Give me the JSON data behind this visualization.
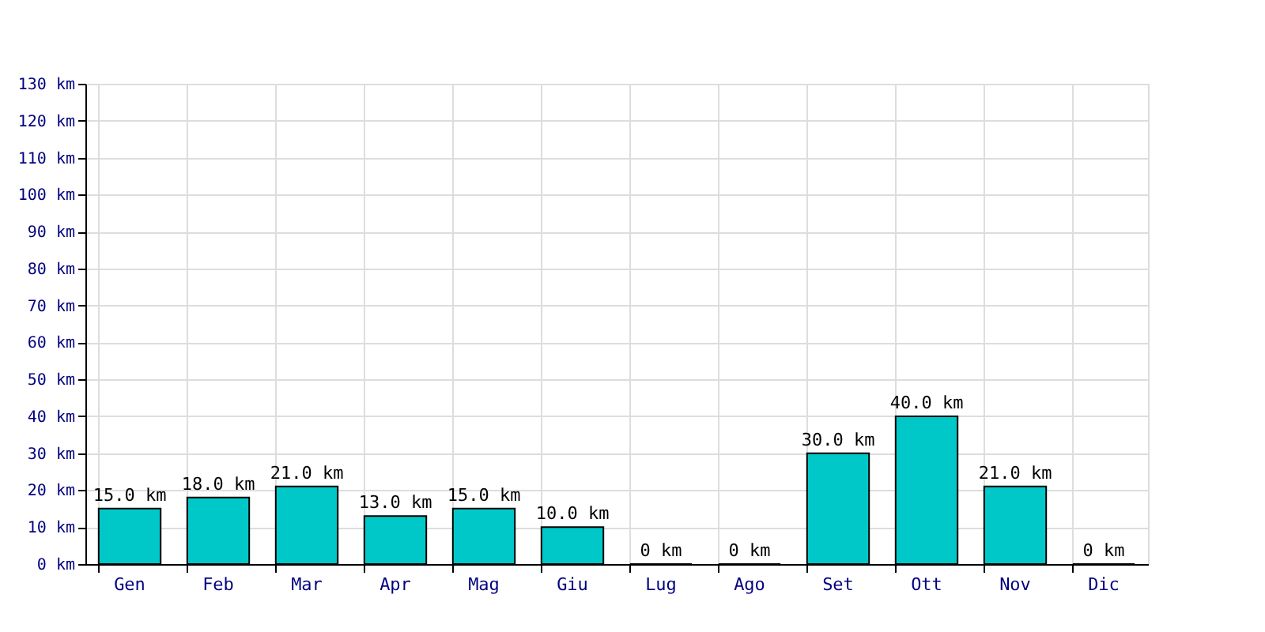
{
  "chart_data": {
    "type": "bar",
    "categories": [
      "Gen",
      "Feb",
      "Mar",
      "Apr",
      "Mag",
      "Giu",
      "Lug",
      "Ago",
      "Set",
      "Ott",
      "Nov",
      "Dic"
    ],
    "values": [
      15,
      18,
      21,
      13,
      15,
      10,
      0,
      0,
      30,
      40,
      21,
      0
    ],
    "value_labels": [
      "15.0 km",
      "18.0 km",
      "21.0 km",
      "13.0 km",
      "15.0 km",
      "10.0 km",
      "0 km",
      "0 km",
      "30.0 km",
      "40.0 km",
      "21.0 km",
      "0 km"
    ],
    "color": "#00c8c8",
    "ylim": [
      0,
      130
    ],
    "yticks": [
      {
        "value": 0,
        "label": "0 km"
      },
      {
        "value": 10,
        "label": "10 km"
      },
      {
        "value": 20,
        "label": "20 km"
      },
      {
        "value": 30,
        "label": "30 km"
      },
      {
        "value": 40,
        "label": "40 km"
      },
      {
        "value": 50,
        "label": "50 km"
      },
      {
        "value": 60,
        "label": "60 km"
      },
      {
        "value": 70,
        "label": "70 km"
      },
      {
        "value": 80,
        "label": "80 km"
      },
      {
        "value": 90,
        "label": "90 km"
      },
      {
        "value": 100,
        "label": "100 km"
      },
      {
        "value": 110,
        "label": "110 km"
      },
      {
        "value": 120,
        "label": "120 km"
      },
      {
        "value": 130,
        "label": "130 km"
      }
    ],
    "grid": true
  }
}
